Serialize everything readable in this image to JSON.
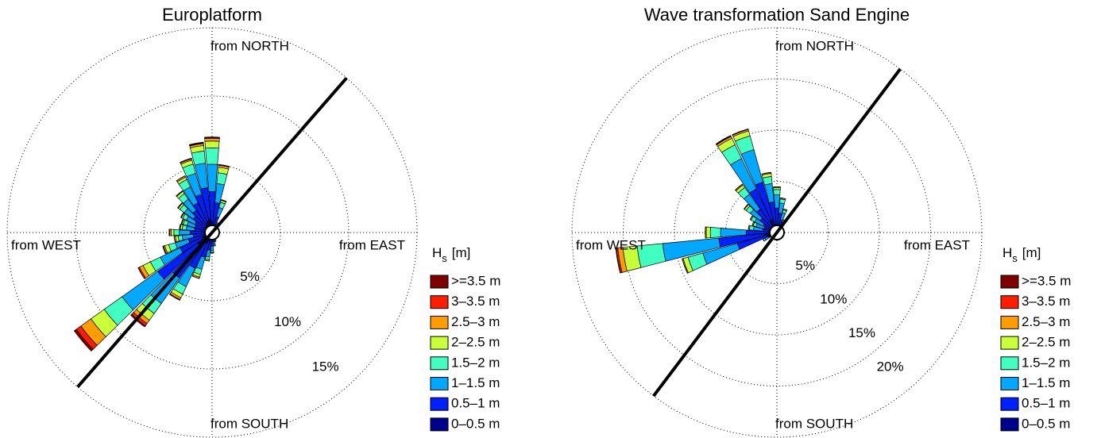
{
  "chart_data": [
    {
      "type": "wave-rose",
      "title": "Europlatform",
      "direction_labels": {
        "north": "from NORTH",
        "east": "from EAST",
        "south": "from SOUTH",
        "west": "from WEST"
      },
      "rlim": [
        0,
        15
      ],
      "rticks": [
        {
          "value": 5,
          "label": "5%"
        },
        {
          "value": 10,
          "label": "10%"
        },
        {
          "value": 15,
          "label": "15%"
        }
      ],
      "shoreline_bearing": 41,
      "legend_title": {
        "main": "H",
        "sub": "s",
        "unit": "[m]"
      },
      "directions": [
        0,
        10,
        20,
        30,
        160,
        170,
        180,
        190,
        200,
        210,
        220,
        230,
        240,
        250,
        260,
        270,
        280,
        290,
        300,
        310,
        320,
        330,
        340,
        350
      ],
      "series": [
        {
          "name": "0–0.5 m",
          "color": "#00008f",
          "values": [
            0.8,
            0.6,
            0.4,
            0.2,
            0.3,
            0.3,
            0.4,
            0.5,
            0.7,
            0.9,
            1.1,
            1.3,
            0.8,
            0.6,
            0.5,
            0.6,
            0.5,
            0.5,
            0.5,
            0.6,
            0.7,
            0.8,
            0.9,
            1.0
          ]
        },
        {
          "name": "0.5–1 m",
          "color": "#0020ff",
          "values": [
            2.2,
            1.6,
            0.8,
            0.3,
            0.3,
            0.4,
            0.6,
            0.8,
            1.2,
            2.0,
            3.0,
            3.6,
            1.8,
            1.2,
            0.9,
            1.0,
            0.8,
            0.8,
            0.9,
            1.1,
            1.3,
            1.6,
            2.0,
            2.3
          ]
        },
        {
          "name": "1–1.5 m",
          "color": "#00a8ff",
          "values": [
            2.0,
            1.4,
            0.7,
            0.2,
            0.1,
            0.2,
            0.3,
            0.5,
            0.9,
            1.5,
            2.3,
            3.2,
            1.6,
            1.0,
            0.8,
            0.8,
            0.6,
            0.6,
            0.7,
            0.8,
            1.0,
            1.3,
            1.6,
            1.8
          ]
        },
        {
          "name": "1.5–2 m",
          "color": "#40ffc0",
          "values": [
            1.2,
            0.8,
            0.4,
            0.1,
            0,
            0.1,
            0.15,
            0.2,
            0.4,
            0.6,
            0.9,
            1.6,
            0.8,
            0.5,
            0.3,
            0.4,
            0.3,
            0.3,
            0.3,
            0.4,
            0.5,
            0.6,
            0.7,
            0.9
          ]
        },
        {
          "name": "2–2.5 m",
          "color": "#c8ff38",
          "values": [
            0.5,
            0.4,
            0.15,
            0,
            0,
            0,
            0.05,
            0.1,
            0.2,
            0.3,
            0.6,
            1.2,
            0.6,
            0.3,
            0.2,
            0.2,
            0.15,
            0.1,
            0.1,
            0.15,
            0.2,
            0.2,
            0.3,
            0.4
          ]
        },
        {
          "name": "2.5–3 m",
          "color": "#ff9c00",
          "values": [
            0.2,
            0.15,
            0.05,
            0,
            0,
            0,
            0,
            0,
            0.1,
            0.15,
            0.3,
            0.9,
            0.3,
            0.1,
            0.1,
            0.1,
            0.05,
            0.05,
            0.05,
            0.05,
            0.05,
            0.1,
            0.1,
            0.15
          ]
        },
        {
          "name": "3–3.5 m",
          "color": "#ff1c00",
          "values": [
            0.05,
            0.05,
            0,
            0,
            0,
            0,
            0,
            0,
            0,
            0.05,
            0.2,
            0.4,
            0.1,
            0.05,
            0,
            0.05,
            0,
            0,
            0,
            0,
            0,
            0,
            0.05,
            0.05
          ]
        },
        {
          "name": ">=3.5 m",
          "color": "#800000",
          "values": [
            0.05,
            0,
            0,
            0,
            0,
            0,
            0,
            0,
            0,
            0,
            0.1,
            0.2,
            0,
            0,
            0,
            0,
            0,
            0,
            0,
            0,
            0,
            0,
            0,
            0.05
          ]
        }
      ]
    },
    {
      "type": "wave-rose",
      "title": "Wave transformation Sand Engine",
      "direction_labels": {
        "north": "from NORTH",
        "east": "from EAST",
        "south": "from SOUTH",
        "west": "from WEST"
      },
      "rlim": [
        0,
        20
      ],
      "rticks": [
        {
          "value": 5,
          "label": "5%"
        },
        {
          "value": 10,
          "label": "10%"
        },
        {
          "value": 15,
          "label": "15%"
        },
        {
          "value": 20,
          "label": "20%"
        }
      ],
      "shoreline_bearing": 37,
      "legend_title": {
        "main": "H",
        "sub": "s",
        "unit": "[m]"
      },
      "directions": [
        0,
        10,
        20,
        30,
        40,
        230,
        240,
        250,
        260,
        270,
        280,
        290,
        300,
        310,
        320,
        330,
        340,
        350
      ],
      "series": [
        {
          "name": "0–0.5 m",
          "color": "#00008f",
          "values": [
            0.7,
            0.6,
            0.4,
            0.3,
            0.2,
            0.2,
            0.3,
            1.0,
            1.2,
            0.8,
            0.4,
            0.4,
            0.5,
            0.6,
            0.8,
            1.2,
            1.3,
            0.8
          ]
        },
        {
          "name": "0.5–1 m",
          "color": "#0020ff",
          "values": [
            1.7,
            1.3,
            0.9,
            0.5,
            0.3,
            0.3,
            0.6,
            3.0,
            4.5,
            2.2,
            1.0,
            0.9,
            1.0,
            1.4,
            2.0,
            3.5,
            3.8,
            2.2
          ]
        },
        {
          "name": "1–1.5 m",
          "color": "#00a8ff",
          "values": [
            1.3,
            1.0,
            0.7,
            0.4,
            0.2,
            0.2,
            0.4,
            3.5,
            5.5,
            2.5,
            0.9,
            0.8,
            0.9,
            1.2,
            1.8,
            3.3,
            3.3,
            1.8
          ]
        },
        {
          "name": "1.5–2 m",
          "color": "#40ffc0",
          "values": [
            0.5,
            0.4,
            0.3,
            0.2,
            0.1,
            0,
            0.2,
            1.5,
            2.5,
            1.0,
            0.4,
            0.3,
            0.4,
            0.5,
            0.8,
            1.5,
            1.4,
            0.7
          ]
        },
        {
          "name": "2–2.5 m",
          "color": "#c8ff38",
          "values": [
            0.2,
            0.1,
            0.1,
            0,
            0,
            0,
            0,
            0.5,
            1.4,
            0.4,
            0.1,
            0.1,
            0.1,
            0.2,
            0.3,
            0.7,
            0.5,
            0.3
          ]
        },
        {
          "name": "2.5–3 m",
          "color": "#ff9c00",
          "values": [
            0.05,
            0,
            0,
            0,
            0,
            0,
            0,
            0.1,
            0.5,
            0.1,
            0,
            0,
            0,
            0.05,
            0.1,
            0.2,
            0.15,
            0.1
          ]
        },
        {
          "name": "3–3.5 m",
          "color": "#ff1c00",
          "values": [
            0,
            0,
            0,
            0,
            0,
            0,
            0,
            0,
            0.15,
            0,
            0,
            0,
            0,
            0,
            0,
            0.05,
            0.05,
            0
          ]
        },
        {
          "name": ">=3.5 m",
          "color": "#800000",
          "values": [
            0,
            0,
            0,
            0,
            0,
            0,
            0,
            0,
            0.05,
            0,
            0,
            0,
            0,
            0,
            0,
            0.05,
            0,
            0
          ]
        }
      ]
    }
  ]
}
